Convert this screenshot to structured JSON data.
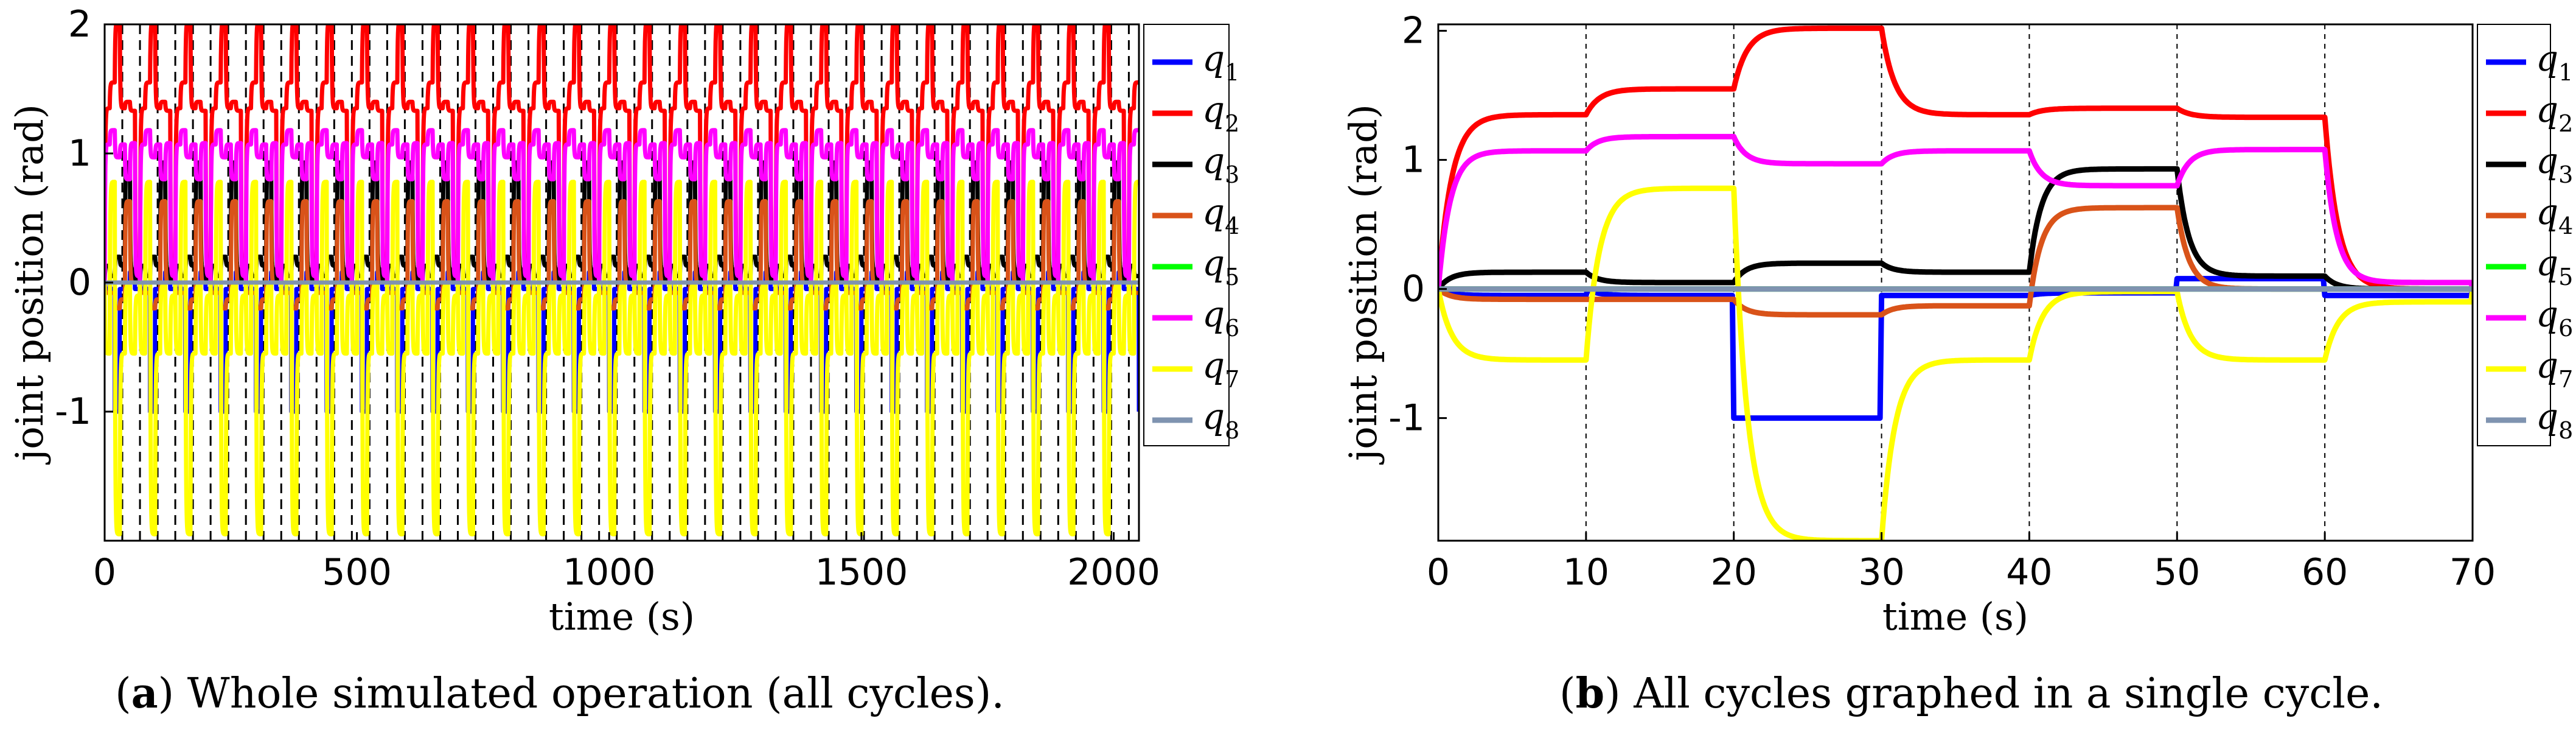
{
  "colors": {
    "q1": "#0000ff",
    "q2": "#ff0000",
    "q3": "#000000",
    "q4": "#d95319",
    "q5": "#00ff00",
    "q6": "#ff00ff",
    "q7": "#ffff00",
    "q8": "#7f93b0"
  },
  "chart_data": [
    {
      "type": "line",
      "id": "a",
      "xlabel": "time (s)",
      "ylabel": "joint position (rad)",
      "xlim": [
        0,
        2050
      ],
      "ylim": [
        -2,
        2
      ],
      "xticks": [
        "0",
        "500",
        "1000",
        "1500",
        "2000"
      ],
      "xtick_values": [
        0,
        500,
        1000,
        1500,
        2000
      ],
      "yticks": [
        "2",
        "1",
        "0",
        "-1"
      ],
      "ytick_values": [
        2,
        1,
        0,
        -1
      ],
      "legend": [
        {
          "base": "q",
          "sub": "1"
        },
        {
          "base": "q",
          "sub": "2"
        },
        {
          "base": "q",
          "sub": "3"
        },
        {
          "base": "q",
          "sub": "4"
        },
        {
          "base": "q",
          "sub": "5"
        },
        {
          "base": "q",
          "sub": "6"
        },
        {
          "base": "q",
          "sub": "7"
        },
        {
          "base": "q",
          "sub": "8"
        }
      ],
      "legend_position": "right-outside",
      "cycle_period_s": 70,
      "cycle_count": 29,
      "dashed_lines_every_s": 35,
      "caption_label": "a",
      "caption_text": ") Whole simulated operation (all cycles)."
    },
    {
      "type": "line",
      "id": "b",
      "xlabel": "time (s)",
      "ylabel": "joint position (rad)",
      "xlim": [
        0,
        70
      ],
      "ylim": [
        -1.95,
        2.05
      ],
      "xticks": [
        "0",
        "10",
        "20",
        "30",
        "40",
        "50",
        "60",
        "70"
      ],
      "xtick_values": [
        0,
        10,
        20,
        30,
        40,
        50,
        60,
        70
      ],
      "yticks": [
        "2",
        "1",
        "0",
        "-1"
      ],
      "ytick_values": [
        2,
        1,
        0,
        -1
      ],
      "segment_boundaries_s": [
        10,
        20,
        30,
        40,
        50,
        60
      ],
      "legend": [
        {
          "base": "q",
          "sub": "1"
        },
        {
          "base": "q",
          "sub": "2"
        },
        {
          "base": "q",
          "sub": "3"
        },
        {
          "base": "q",
          "sub": "4"
        },
        {
          "base": "q",
          "sub": "5"
        },
        {
          "base": "q",
          "sub": "6"
        },
        {
          "base": "q",
          "sub": "7"
        },
        {
          "base": "q",
          "sub": "8"
        }
      ],
      "legend_position": "right-inside",
      "series": [
        {
          "name": "q1",
          "tau": 0.8,
          "segments": [
            [
              0,
              -0.05
            ],
            [
              0,
              -0.05
            ],
            [
              -1.0,
              -1.0
            ],
            [
              -0.05,
              -0.05
            ],
            [
              -0.05,
              -0.03
            ],
            [
              0.08,
              0.08
            ],
            [
              -0.05,
              -0.05
            ],
            [
              0,
              0
            ]
          ]
        },
        {
          "name": "q2",
          "tau": 0.9,
          "segments": [
            [
              0,
              1.35
            ],
            [
              1.35,
              1.55
            ],
            [
              1.55,
              2.02
            ],
            [
              2.02,
              1.35
            ],
            [
              1.35,
              1.4
            ],
            [
              1.4,
              1.33
            ],
            [
              1.33,
              0
            ],
            [
              0,
              0
            ]
          ]
        },
        {
          "name": "q3",
          "tau": 0.8,
          "segments": [
            [
              0,
              0.13
            ],
            [
              0.13,
              0.05
            ],
            [
              0.05,
              0.2
            ],
            [
              0.2,
              0.13
            ],
            [
              0.13,
              0.93
            ],
            [
              0.93,
              0.1
            ],
            [
              0.1,
              0
            ],
            [
              0,
              0
            ]
          ]
        },
        {
          "name": "q4",
          "tau": 0.8,
          "segments": [
            [
              0,
              -0.08
            ],
            [
              -0.08,
              -0.08
            ],
            [
              -0.08,
              -0.2
            ],
            [
              -0.2,
              -0.13
            ],
            [
              -0.13,
              0.63
            ],
            [
              0.63,
              0
            ],
            [
              0,
              0
            ],
            [
              0,
              0
            ]
          ]
        },
        {
          "name": "q5",
          "tau": 0.8,
          "segments": [
            [
              0,
              0
            ],
            [
              0,
              0
            ],
            [
              0,
              0
            ],
            [
              0,
              0
            ],
            [
              0,
              0
            ],
            [
              0,
              0
            ],
            [
              0,
              0
            ],
            [
              0,
              0
            ]
          ]
        },
        {
          "name": "q6",
          "tau": 0.8,
          "segments": [
            [
              0,
              1.07
            ],
            [
              1.07,
              1.18
            ],
            [
              1.18,
              0.97
            ],
            [
              0.97,
              1.07
            ],
            [
              1.07,
              0.8
            ],
            [
              0.8,
              1.08
            ],
            [
              1.08,
              0.05
            ],
            [
              0,
              0
            ]
          ]
        },
        {
          "name": "q7",
          "tau": 0.9,
          "segments": [
            [
              0,
              -0.55
            ],
            [
              -0.55,
              0.78
            ],
            [
              0.78,
              -1.95
            ],
            [
              -1.95,
              -0.55
            ],
            [
              -0.55,
              -0.02
            ],
            [
              -0.02,
              -0.55
            ],
            [
              -0.55,
              -0.1
            ],
            [
              0,
              0
            ]
          ]
        },
        {
          "name": "q8",
          "tau": 0.8,
          "segments": [
            [
              0,
              0
            ],
            [
              0,
              0
            ],
            [
              0,
              0
            ],
            [
              0,
              0
            ],
            [
              0,
              0
            ],
            [
              0,
              0
            ],
            [
              0,
              0
            ],
            [
              0,
              0
            ]
          ]
        }
      ],
      "caption_label": "b",
      "caption_text": ") All cycles graphed in a single cycle."
    }
  ]
}
